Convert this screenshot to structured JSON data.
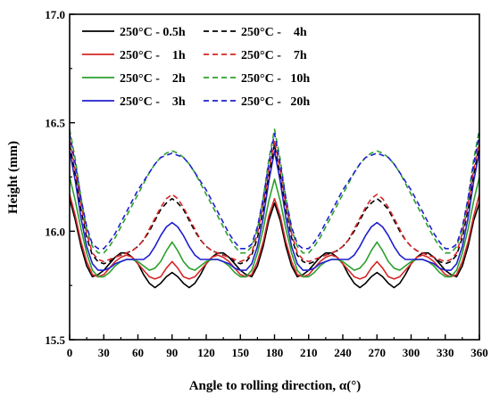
{
  "chart_data": {
    "type": "line",
    "title": "",
    "xlabel": "Angle to rolling direction, α(°)",
    "ylabel": "Height (mm)",
    "xlim": [
      0,
      360
    ],
    "ylim": [
      15.5,
      17.0
    ],
    "x_ticks": [
      0,
      30,
      60,
      90,
      120,
      150,
      180,
      210,
      240,
      270,
      300,
      330,
      360
    ],
    "y_ticks": [
      15.5,
      16.0,
      16.5,
      17.0
    ],
    "y_tick_labels": [
      "15.5",
      "16.0",
      "16.5",
      "17.0"
    ],
    "grid": false,
    "legend_position": "top-left",
    "legend": {
      "prefix": "250°C - ",
      "rows": [
        [
          {
            "series": 0,
            "label": "250°C - 0.5h"
          },
          {
            "series": 4,
            "label": "250°C -    4h"
          }
        ],
        [
          {
            "series": 1,
            "label": "250°C -    1h"
          },
          {
            "series": 5,
            "label": "250°C -    7h"
          }
        ],
        [
          {
            "series": 2,
            "label": "250°C -    2h"
          },
          {
            "series": 6,
            "label": "250°C -   10h"
          }
        ],
        [
          {
            "series": 3,
            "label": "250°C -    3h"
          },
          {
            "series": 7,
            "label": "250°C -   20h"
          }
        ]
      ]
    },
    "x": [
      0,
      5,
      10,
      15,
      20,
      25,
      30,
      35,
      40,
      45,
      50,
      55,
      60,
      65,
      70,
      75,
      80,
      85,
      90,
      95,
      100,
      105,
      110,
      115,
      120,
      125,
      130,
      135,
      140,
      145,
      150,
      155,
      160,
      165,
      170,
      175,
      180,
      185,
      190,
      195,
      200,
      205,
      210,
      215,
      220,
      225,
      230,
      235,
      240,
      245,
      250,
      255,
      260,
      265,
      270,
      275,
      280,
      285,
      290,
      295,
      300,
      305,
      310,
      315,
      320,
      325,
      330,
      335,
      340,
      345,
      350,
      355,
      360
    ],
    "series": [
      {
        "name": "250°C - 0.5h",
        "color": "#000000",
        "dashed": false,
        "values": [
          16.15,
          16.05,
          15.93,
          15.84,
          15.79,
          15.8,
          15.82,
          15.85,
          15.88,
          15.9,
          15.9,
          15.88,
          15.85,
          15.8,
          15.76,
          15.74,
          15.76,
          15.79,
          15.81,
          15.79,
          15.76,
          15.74,
          15.76,
          15.8,
          15.85,
          15.88,
          15.9,
          15.9,
          15.88,
          15.85,
          15.82,
          15.8,
          15.79,
          15.84,
          15.93,
          16.05,
          16.13,
          16.05,
          15.93,
          15.84,
          15.79,
          15.8,
          15.82,
          15.85,
          15.88,
          15.9,
          15.9,
          15.88,
          15.85,
          15.8,
          15.76,
          15.74,
          15.76,
          15.79,
          15.81,
          15.79,
          15.76,
          15.74,
          15.76,
          15.8,
          15.85,
          15.88,
          15.9,
          15.9,
          15.88,
          15.85,
          15.82,
          15.8,
          15.79,
          15.84,
          15.93,
          16.05,
          16.13
        ]
      },
      {
        "name": "250°C - 1h",
        "color": "#d62728",
        "dashed": false,
        "values": [
          16.17,
          16.07,
          15.95,
          15.86,
          15.8,
          15.79,
          15.8,
          15.83,
          15.86,
          15.88,
          15.89,
          15.88,
          15.85,
          15.82,
          15.79,
          15.78,
          15.79,
          15.83,
          15.86,
          15.83,
          15.79,
          15.78,
          15.79,
          15.82,
          15.85,
          15.88,
          15.89,
          15.88,
          15.86,
          15.83,
          15.8,
          15.79,
          15.8,
          15.86,
          15.95,
          16.07,
          16.15,
          16.07,
          15.95,
          15.86,
          15.8,
          15.79,
          15.8,
          15.83,
          15.86,
          15.88,
          15.89,
          15.88,
          15.85,
          15.82,
          15.79,
          15.78,
          15.79,
          15.83,
          15.86,
          15.83,
          15.79,
          15.78,
          15.79,
          15.82,
          15.85,
          15.88,
          15.89,
          15.88,
          15.86,
          15.83,
          15.8,
          15.79,
          15.8,
          15.86,
          15.95,
          16.07,
          16.17
        ]
      },
      {
        "name": "250°C - 2h",
        "color": "#2ca02c",
        "dashed": false,
        "values": [
          16.25,
          16.14,
          16.01,
          15.9,
          15.82,
          15.79,
          15.79,
          15.81,
          15.84,
          15.86,
          15.87,
          15.87,
          15.86,
          15.84,
          15.82,
          15.83,
          15.86,
          15.91,
          15.95,
          15.91,
          15.86,
          15.83,
          15.82,
          15.84,
          15.86,
          15.87,
          15.87,
          15.86,
          15.84,
          15.81,
          15.79,
          15.79,
          15.82,
          15.9,
          16.01,
          16.14,
          16.24,
          16.14,
          16.01,
          15.9,
          15.82,
          15.79,
          15.79,
          15.81,
          15.84,
          15.86,
          15.87,
          15.87,
          15.86,
          15.84,
          15.82,
          15.83,
          15.86,
          15.91,
          15.95,
          15.91,
          15.86,
          15.83,
          15.82,
          15.84,
          15.86,
          15.87,
          15.87,
          15.86,
          15.84,
          15.81,
          15.79,
          15.79,
          15.82,
          15.9,
          16.01,
          16.14,
          16.25
        ]
      },
      {
        "name": "250°C - 3h",
        "color": "#1f1fcf",
        "dashed": false,
        "values": [
          16.37,
          16.23,
          16.06,
          15.93,
          15.85,
          15.82,
          15.82,
          15.83,
          15.85,
          15.86,
          15.87,
          15.87,
          15.87,
          15.87,
          15.89,
          15.93,
          15.98,
          16.02,
          16.04,
          16.02,
          15.98,
          15.93,
          15.89,
          15.87,
          15.87,
          15.87,
          15.87,
          15.86,
          15.85,
          15.83,
          15.82,
          15.82,
          15.85,
          15.93,
          16.06,
          16.23,
          16.37,
          16.23,
          16.06,
          15.93,
          15.85,
          15.82,
          15.82,
          15.83,
          15.85,
          15.86,
          15.87,
          15.87,
          15.87,
          15.87,
          15.89,
          15.93,
          15.98,
          16.02,
          16.04,
          16.02,
          15.98,
          15.93,
          15.89,
          15.87,
          15.87,
          15.87,
          15.87,
          15.86,
          15.85,
          15.83,
          15.82,
          15.82,
          15.85,
          15.93,
          16.06,
          16.23,
          16.37
        ]
      },
      {
        "name": "250°C - 4h",
        "color": "#000000",
        "dashed": true,
        "values": [
          16.4,
          16.26,
          16.1,
          15.97,
          15.89,
          15.86,
          15.85,
          15.86,
          15.88,
          15.89,
          15.9,
          15.91,
          15.93,
          15.96,
          16.0,
          16.05,
          16.1,
          16.13,
          16.15,
          16.13,
          16.1,
          16.05,
          16.0,
          15.96,
          15.93,
          15.91,
          15.9,
          15.89,
          15.88,
          15.86,
          15.85,
          15.86,
          15.89,
          15.97,
          16.1,
          16.26,
          16.4,
          16.26,
          16.1,
          15.97,
          15.89,
          15.86,
          15.85,
          15.86,
          15.88,
          15.89,
          15.9,
          15.91,
          15.93,
          15.96,
          16.0,
          16.05,
          16.1,
          16.13,
          16.15,
          16.13,
          16.1,
          16.05,
          16.0,
          15.96,
          15.93,
          15.91,
          15.9,
          15.89,
          15.88,
          15.86,
          15.85,
          15.86,
          15.89,
          15.97,
          16.1,
          16.26,
          16.4
        ]
      },
      {
        "name": "250°C - 7h",
        "color": "#d62728",
        "dashed": true,
        "values": [
          16.42,
          16.28,
          16.12,
          15.99,
          15.9,
          15.87,
          15.86,
          15.87,
          15.88,
          15.89,
          15.9,
          15.91,
          15.93,
          15.96,
          16.01,
          16.06,
          16.11,
          16.15,
          16.17,
          16.15,
          16.11,
          16.06,
          16.01,
          15.96,
          15.93,
          15.91,
          15.9,
          15.89,
          15.88,
          15.87,
          15.86,
          15.87,
          15.9,
          15.99,
          16.12,
          16.28,
          16.42,
          16.28,
          16.12,
          15.99,
          15.9,
          15.87,
          15.86,
          15.87,
          15.88,
          15.89,
          15.9,
          15.91,
          15.93,
          15.96,
          16.01,
          16.06,
          16.11,
          16.15,
          16.17,
          16.15,
          16.11,
          16.06,
          16.01,
          15.96,
          15.93,
          15.91,
          15.9,
          15.89,
          15.88,
          15.87,
          15.86,
          15.87,
          15.9,
          15.99,
          16.12,
          16.28,
          16.42
        ]
      },
      {
        "name": "250°C - 10h",
        "color": "#2ca02c",
        "dashed": true,
        "values": [
          16.47,
          16.33,
          16.15,
          16.01,
          15.93,
          15.9,
          15.9,
          15.93,
          15.97,
          16.02,
          16.07,
          16.12,
          16.17,
          16.22,
          16.27,
          16.31,
          16.34,
          16.36,
          16.37,
          16.36,
          16.34,
          16.31,
          16.27,
          16.22,
          16.17,
          16.12,
          16.07,
          16.02,
          15.97,
          15.93,
          15.9,
          15.9,
          15.93,
          16.01,
          16.15,
          16.33,
          16.47,
          16.33,
          16.15,
          16.01,
          15.93,
          15.9,
          15.9,
          15.93,
          15.97,
          16.02,
          16.07,
          16.12,
          16.17,
          16.22,
          16.27,
          16.31,
          16.34,
          16.36,
          16.37,
          16.36,
          16.34,
          16.31,
          16.27,
          16.22,
          16.17,
          16.12,
          16.07,
          16.02,
          15.97,
          15.93,
          15.9,
          15.9,
          15.93,
          16.01,
          16.15,
          16.33,
          16.47
        ]
      },
      {
        "name": "250°C - 20h",
        "color": "#1f1fcf",
        "dashed": true,
        "values": [
          16.45,
          16.31,
          16.15,
          16.02,
          15.94,
          15.92,
          15.92,
          15.95,
          15.99,
          16.04,
          16.09,
          16.14,
          16.19,
          16.23,
          16.27,
          16.31,
          16.34,
          16.35,
          16.36,
          16.35,
          16.34,
          16.31,
          16.27,
          16.23,
          16.19,
          16.14,
          16.09,
          16.04,
          15.99,
          15.95,
          15.92,
          15.92,
          15.94,
          16.02,
          16.15,
          16.31,
          16.45,
          16.31,
          16.15,
          16.02,
          15.94,
          15.92,
          15.92,
          15.95,
          15.99,
          16.04,
          16.09,
          16.14,
          16.19,
          16.23,
          16.27,
          16.31,
          16.34,
          16.35,
          16.36,
          16.35,
          16.34,
          16.31,
          16.27,
          16.23,
          16.19,
          16.14,
          16.09,
          16.04,
          15.99,
          15.95,
          15.92,
          15.92,
          15.94,
          16.02,
          16.15,
          16.31,
          16.45
        ]
      }
    ]
  }
}
